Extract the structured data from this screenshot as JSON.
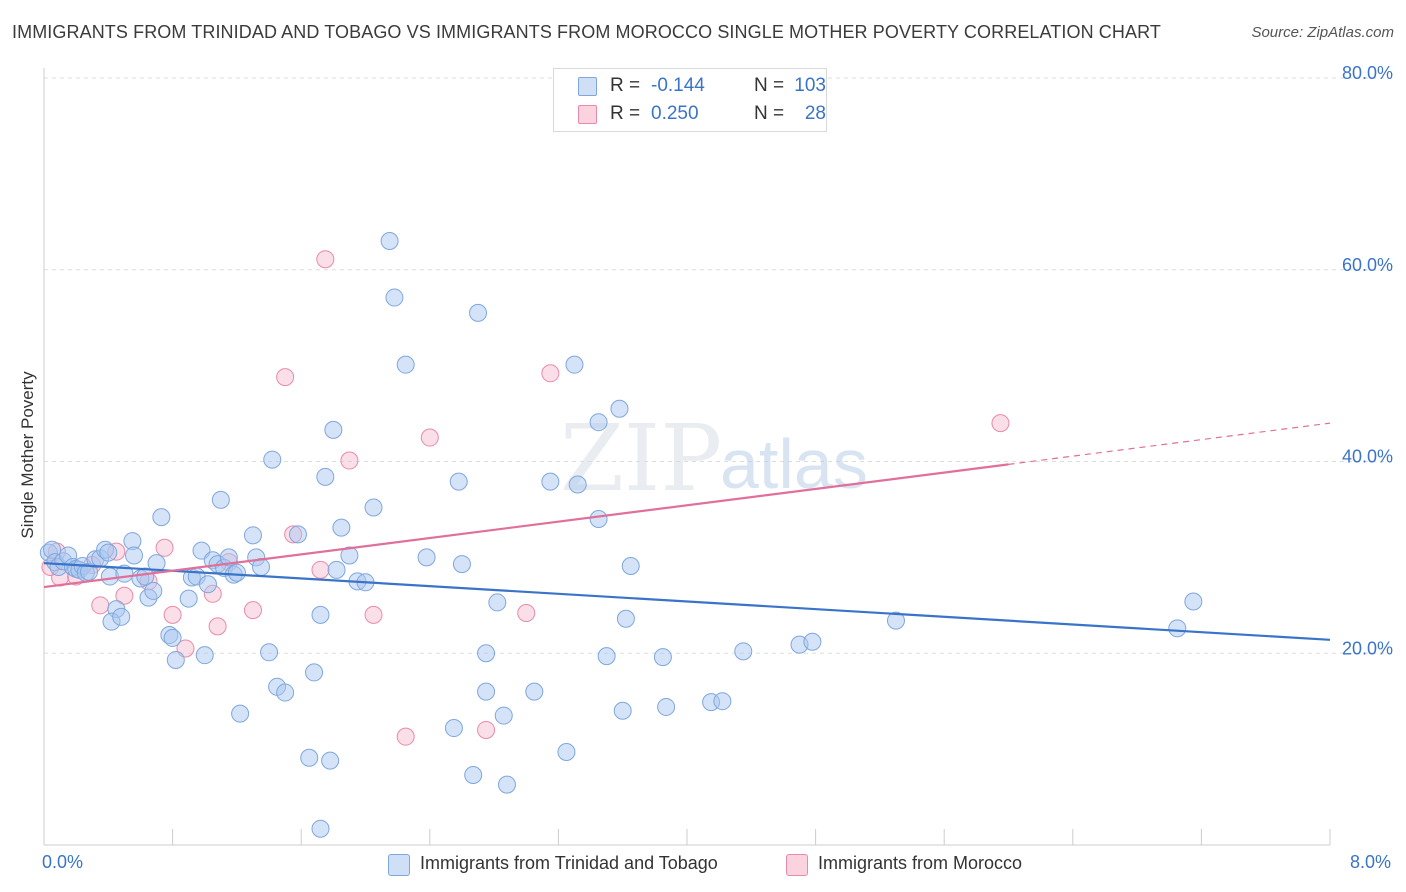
{
  "title": "IMMIGRANTS FROM TRINIDAD AND TOBAGO VS IMMIGRANTS FROM MOROCCO SINGLE MOTHER POVERTY CORRELATION CHART",
  "source": "Source: ZipAtlas.com",
  "watermark": {
    "zip": "ZIP",
    "atlas": "atlas"
  },
  "legend_top": {
    "rows": [
      {
        "r_label": "R =",
        "r_value": "-0.144",
        "n_label": "N =",
        "n_value": "103",
        "color": "#a9c8ef"
      },
      {
        "r_label": "R =",
        "r_value": "0.250",
        "n_label": "N =",
        "n_value": "28",
        "color": "#f7b9cc"
      }
    ]
  },
  "legend_bottom": [
    {
      "label": "Immigrants from Trinidad and Tobago",
      "color": "#a9c8ef"
    },
    {
      "label": "Immigrants from Morocco",
      "color": "#f7b9cc"
    }
  ],
  "colors": {
    "blue_fill": "#a9c8ef",
    "blue_stroke": "#7fa7dd",
    "blue_line": "#3a74c9",
    "pink_fill": "#f7b9cc",
    "pink_stroke": "#e98aa9",
    "pink_line": "#e0709a",
    "grid": "#dddddd",
    "axis_text": "#3a74c9"
  },
  "chart_data": {
    "type": "scatter",
    "title": "IMMIGRANTS FROM TRINIDAD AND TOBAGO VS IMMIGRANTS FROM MOROCCO SINGLE MOTHER POVERTY CORRELATION CHART",
    "xlabel": "",
    "ylabel": "Single Mother Poverty",
    "xlim": [
      0,
      8
    ],
    "ylim": [
      0,
      80
    ],
    "x_tick_labels": {
      "min": "0.0%",
      "max": "8.0%"
    },
    "y_ticks": [
      {
        "value": 20,
        "label": "20.0%"
      },
      {
        "value": 40,
        "label": "40.0%"
      },
      {
        "value": 60,
        "label": "60.0%"
      },
      {
        "value": 80,
        "label": "80.0%"
      }
    ],
    "series": [
      {
        "name": "Immigrants from Trinidad and Tobago",
        "r": -0.144,
        "n": 103,
        "trend": {
          "x0": 0.0,
          "y0": 29.4,
          "x1": 8.0,
          "y1": 21.4
        },
        "points": [
          [
            0.03,
            30.5
          ],
          [
            0.05,
            30.8
          ],
          [
            0.07,
            29.5
          ],
          [
            0.09,
            29.0
          ],
          [
            0.12,
            29.6
          ],
          [
            0.15,
            30.2
          ],
          [
            0.18,
            29.0
          ],
          [
            0.2,
            28.8
          ],
          [
            0.22,
            28.7
          ],
          [
            0.24,
            29.1
          ],
          [
            0.26,
            28.4
          ],
          [
            0.28,
            28.5
          ],
          [
            0.32,
            29.8
          ],
          [
            0.35,
            29.9
          ],
          [
            0.38,
            30.8
          ],
          [
            0.4,
            30.5
          ],
          [
            0.41,
            28.0
          ],
          [
            0.45,
            24.6
          ],
          [
            0.42,
            23.3
          ],
          [
            0.48,
            23.8
          ],
          [
            0.5,
            28.3
          ],
          [
            0.55,
            31.7
          ],
          [
            0.56,
            30.2
          ],
          [
            0.6,
            27.8
          ],
          [
            0.63,
            28.0
          ],
          [
            0.65,
            25.8
          ],
          [
            0.68,
            26.5
          ],
          [
            0.7,
            29.4
          ],
          [
            0.73,
            34.2
          ],
          [
            0.78,
            21.9
          ],
          [
            0.8,
            21.6
          ],
          [
            0.82,
            19.3
          ],
          [
            0.9,
            25.7
          ],
          [
            0.92,
            27.9
          ],
          [
            0.95,
            28.0
          ],
          [
            0.98,
            30.7
          ],
          [
            1.02,
            27.2
          ],
          [
            1.05,
            29.7
          ],
          [
            1.08,
            29.3
          ],
          [
            1.12,
            28.9
          ],
          [
            1.15,
            30.0
          ],
          [
            1.18,
            28.2
          ],
          [
            1.2,
            28.4
          ],
          [
            1.22,
            13.7
          ],
          [
            1.3,
            32.3
          ],
          [
            1.32,
            30.0
          ],
          [
            1.35,
            29.0
          ],
          [
            1.4,
            20.1
          ],
          [
            1.42,
            40.2
          ],
          [
            1.45,
            16.5
          ],
          [
            1.5,
            15.9
          ],
          [
            1.58,
            32.4
          ],
          [
            1.65,
            9.1
          ],
          [
            1.68,
            18.0
          ],
          [
            1.72,
            24.0
          ],
          [
            1.75,
            38.4
          ],
          [
            1.78,
            8.8
          ],
          [
            1.8,
            43.3
          ],
          [
            1.82,
            28.7
          ],
          [
            1.85,
            33.1
          ],
          [
            1.9,
            30.2
          ],
          [
            1.95,
            27.5
          ],
          [
            2.0,
            27.4
          ],
          [
            2.05,
            35.2
          ],
          [
            2.15,
            63.0
          ],
          [
            2.18,
            57.1
          ],
          [
            2.25,
            50.1
          ],
          [
            2.38,
            30.0
          ],
          [
            2.55,
            12.2
          ],
          [
            2.58,
            37.9
          ],
          [
            2.6,
            29.3
          ],
          [
            2.67,
            7.3
          ],
          [
            2.7,
            55.5
          ],
          [
            2.75,
            20.0
          ],
          [
            2.75,
            16.0
          ],
          [
            2.82,
            25.3
          ],
          [
            2.86,
            13.5
          ],
          [
            2.88,
            6.3
          ],
          [
            3.05,
            16.0
          ],
          [
            3.15,
            37.9
          ],
          [
            3.25,
            9.7
          ],
          [
            3.3,
            50.1
          ],
          [
            3.32,
            37.6
          ],
          [
            3.45,
            44.1
          ],
          [
            3.45,
            34.0
          ],
          [
            3.5,
            19.7
          ],
          [
            3.58,
            45.5
          ],
          [
            3.6,
            14.0
          ],
          [
            3.62,
            23.6
          ],
          [
            3.65,
            29.1
          ],
          [
            3.85,
            19.6
          ],
          [
            3.87,
            14.4
          ],
          [
            4.15,
            14.9
          ],
          [
            4.22,
            15.0
          ],
          [
            4.35,
            20.2
          ],
          [
            4.7,
            20.9
          ],
          [
            4.78,
            21.2
          ],
          [
            5.3,
            23.4
          ],
          [
            7.05,
            22.6
          ],
          [
            7.15,
            25.4
          ],
          [
            1.72,
            1.7
          ],
          [
            1.0,
            19.8
          ],
          [
            1.1,
            36.0
          ]
        ]
      },
      {
        "name": "Immigrants from Morocco",
        "r": 0.25,
        "n": 28,
        "trend": {
          "x0": 0.0,
          "y0": 26.9,
          "x1": 6.0,
          "y1": 39.7
        },
        "trend_dashed": {
          "x0": 6.0,
          "y0": 39.7,
          "x1": 8.0,
          "y1": 44.0
        },
        "points": [
          [
            0.04,
            29.0
          ],
          [
            0.08,
            30.6
          ],
          [
            0.1,
            27.9
          ],
          [
            0.2,
            28.0
          ],
          [
            0.3,
            29.2
          ],
          [
            0.35,
            25.0
          ],
          [
            0.45,
            30.6
          ],
          [
            0.5,
            26.0
          ],
          [
            0.65,
            27.5
          ],
          [
            0.75,
            31.0
          ],
          [
            0.8,
            24.0
          ],
          [
            0.88,
            20.5
          ],
          [
            1.05,
            26.2
          ],
          [
            1.08,
            22.8
          ],
          [
            1.15,
            29.5
          ],
          [
            1.3,
            24.5
          ],
          [
            1.5,
            48.8
          ],
          [
            1.55,
            32.4
          ],
          [
            1.72,
            28.7
          ],
          [
            1.75,
            61.1
          ],
          [
            1.9,
            40.1
          ],
          [
            2.05,
            24.0
          ],
          [
            2.25,
            11.3
          ],
          [
            2.4,
            42.5
          ],
          [
            2.75,
            12.0
          ],
          [
            3.0,
            24.2
          ],
          [
            3.15,
            49.2
          ],
          [
            5.95,
            44.0
          ]
        ]
      }
    ]
  }
}
